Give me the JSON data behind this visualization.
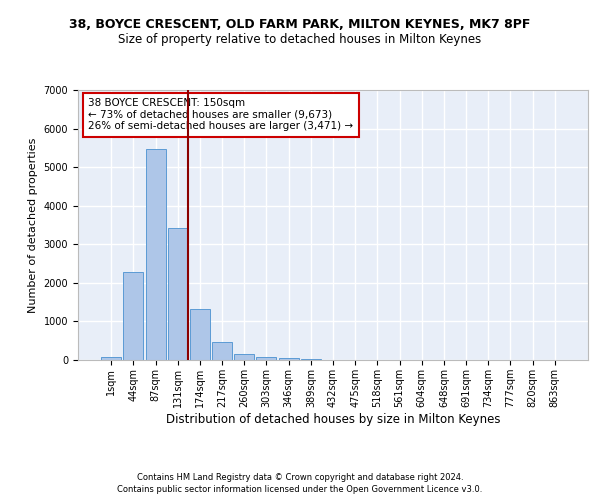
{
  "title_line1": "38, BOYCE CRESCENT, OLD FARM PARK, MILTON KEYNES, MK7 8PF",
  "title_line2": "Size of property relative to detached houses in Milton Keynes",
  "xlabel": "Distribution of detached houses by size in Milton Keynes",
  "ylabel": "Number of detached properties",
  "footer_line1": "Contains HM Land Registry data © Crown copyright and database right 2024.",
  "footer_line2": "Contains public sector information licensed under the Open Government Licence v3.0.",
  "bar_categories": [
    "1sqm",
    "44sqm",
    "87sqm",
    "131sqm",
    "174sqm",
    "217sqm",
    "260sqm",
    "303sqm",
    "346sqm",
    "389sqm",
    "432sqm",
    "475sqm",
    "518sqm",
    "561sqm",
    "604sqm",
    "648sqm",
    "691sqm",
    "734sqm",
    "777sqm",
    "820sqm",
    "863sqm"
  ],
  "bar_values": [
    80,
    2280,
    5470,
    3430,
    1310,
    460,
    160,
    90,
    55,
    30,
    0,
    0,
    0,
    0,
    0,
    0,
    0,
    0,
    0,
    0,
    0
  ],
  "bar_color": "#aec6e8",
  "bar_edgecolor": "#5b9bd5",
  "vline_color": "#8b0000",
  "annotation_text": "38 BOYCE CRESCENT: 150sqm\n← 73% of detached houses are smaller (9,673)\n26% of semi-detached houses are larger (3,471) →",
  "annotation_box_color": "#ffffff",
  "annotation_box_edgecolor": "#cc0000",
  "ylim": [
    0,
    7000
  ],
  "yticks": [
    0,
    1000,
    2000,
    3000,
    4000,
    5000,
    6000,
    7000
  ],
  "background_color": "#e8eef8",
  "grid_color": "#ffffff",
  "title1_fontsize": 9,
  "title2_fontsize": 8.5,
  "xlabel_fontsize": 8.5,
  "ylabel_fontsize": 8,
  "tick_fontsize": 7,
  "annotation_fontsize": 7.5,
  "footer_fontsize": 6
}
